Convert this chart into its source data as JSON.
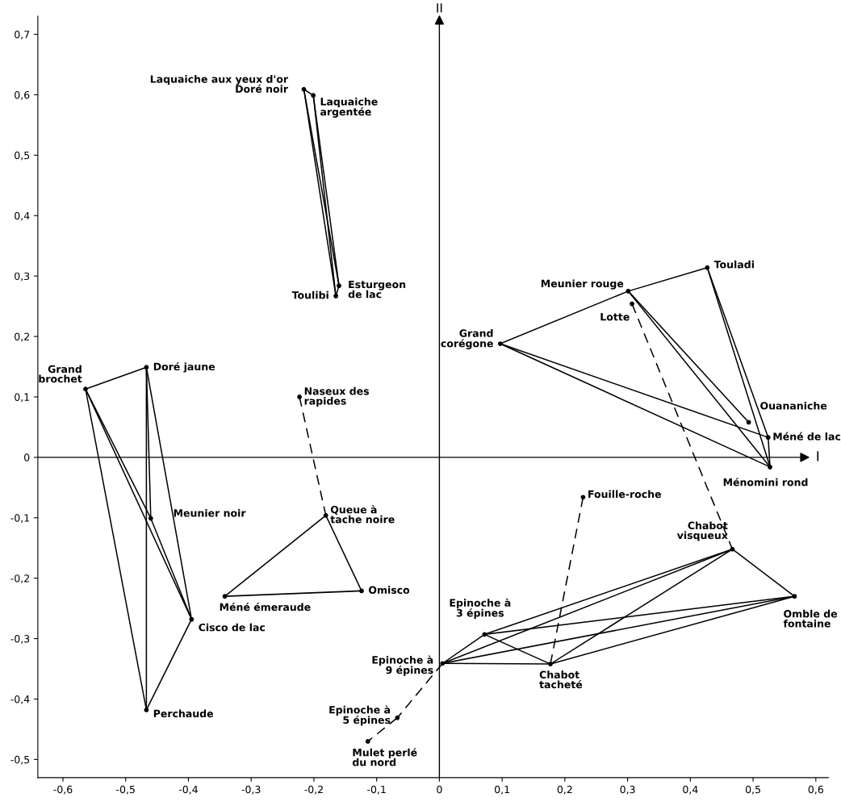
{
  "chart_data": {
    "type": "scatter",
    "xlim": [
      -0.64,
      0.62
    ],
    "ylim": [
      -0.53,
      0.73
    ],
    "xticks": [
      {
        "value": -0.6,
        "label": "-0,6"
      },
      {
        "value": -0.5,
        "label": "-0,5"
      },
      {
        "value": -0.4,
        "label": "-0,4"
      },
      {
        "value": -0.3,
        "label": "-0,3"
      },
      {
        "value": -0.2,
        "label": "-0,2"
      },
      {
        "value": -0.1,
        "label": "-0,1"
      },
      0,
      {
        "value": 0.1,
        "label": "0,1"
      },
      {
        "value": 0.2,
        "label": "0,2"
      },
      {
        "value": 0.3,
        "label": "0,3"
      },
      {
        "value": 0.4,
        "label": "0,4"
      },
      {
        "value": 0.5,
        "label": "0,5"
      },
      {
        "value": 0.6,
        "label": "0,6"
      }
    ],
    "yticks": [
      {
        "value": -0.5,
        "label": "-0,5"
      },
      {
        "value": -0.4,
        "label": "-0,4"
      },
      {
        "value": -0.3,
        "label": "-0,3"
      },
      {
        "value": -0.2,
        "label": "-0,2"
      },
      {
        "value": -0.1,
        "label": "-0,1"
      },
      0,
      {
        "value": 0.1,
        "label": "0,1"
      },
      {
        "value": 0.2,
        "label": "0,2"
      },
      {
        "value": 0.3,
        "label": "0,3"
      },
      {
        "value": 0.4,
        "label": "0,4"
      },
      {
        "value": 0.5,
        "label": "0,5"
      },
      {
        "value": 0.6,
        "label": "0,6"
      },
      {
        "value": 0.7,
        "label": "0,7"
      }
    ],
    "grid": false,
    "ref_lines": [
      {
        "axis": "y",
        "value": 0,
        "label": "I",
        "color": "#000000"
      },
      {
        "axis": "x",
        "value": 0,
        "label": "II",
        "color": "#000000"
      }
    ],
    "series": [
      {
        "type": "line",
        "color": "#000000",
        "line_style": "solid",
        "x": [
          -0.216,
          -0.201
        ],
        "values": [
          0.609,
          0.599
        ]
      },
      {
        "type": "line",
        "color": "#000000",
        "line_style": "solid",
        "x": [
          -0.216,
          -0.165
        ],
        "values": [
          0.609,
          0.267
        ]
      },
      {
        "type": "line",
        "color": "#000000",
        "line_style": "solid",
        "x": [
          -0.216,
          -0.16
        ],
        "values": [
          0.609,
          0.284
        ]
      },
      {
        "type": "line",
        "color": "#000000",
        "line_style": "solid",
        "x": [
          -0.201,
          -0.165
        ],
        "values": [
          0.599,
          0.267
        ]
      },
      {
        "type": "line",
        "color": "#000000",
        "line_style": "solid",
        "x": [
          -0.201,
          -0.16
        ],
        "values": [
          0.599,
          0.284
        ]
      },
      {
        "type": "line",
        "color": "#000000",
        "line_style": "solid",
        "x": [
          -0.165,
          -0.16
        ],
        "values": [
          0.267,
          0.284
        ]
      },
      {
        "type": "line",
        "color": "#000000",
        "line_style": "solid",
        "x": [
          -0.564,
          -0.467
        ],
        "values": [
          0.113,
          0.149
        ]
      },
      {
        "type": "line",
        "color": "#000000",
        "line_style": "solid",
        "x": [
          -0.564,
          -0.467
        ],
        "values": [
          0.113,
          -0.418
        ]
      },
      {
        "type": "line",
        "color": "#000000",
        "line_style": "solid",
        "x": [
          -0.564,
          -0.395
        ],
        "values": [
          0.113,
          -0.268
        ]
      },
      {
        "type": "line",
        "color": "#000000",
        "line_style": "solid",
        "x": [
          -0.564,
          -0.46
        ],
        "values": [
          0.113,
          -0.101
        ]
      },
      {
        "type": "line",
        "color": "#000000",
        "line_style": "solid",
        "x": [
          -0.467,
          -0.467
        ],
        "values": [
          0.149,
          -0.418
        ]
      },
      {
        "type": "line",
        "color": "#000000",
        "line_style": "solid",
        "x": [
          -0.467,
          -0.395
        ],
        "values": [
          0.149,
          -0.268
        ]
      },
      {
        "type": "line",
        "color": "#000000",
        "line_style": "solid",
        "x": [
          -0.467,
          -0.46
        ],
        "values": [
          0.149,
          -0.101
        ]
      },
      {
        "type": "line",
        "color": "#000000",
        "line_style": "solid",
        "x": [
          -0.46,
          -0.395
        ],
        "values": [
          -0.101,
          -0.268
        ]
      },
      {
        "type": "line",
        "color": "#000000",
        "line_style": "solid",
        "x": [
          -0.395,
          -0.467
        ],
        "values": [
          -0.268,
          -0.418
        ]
      },
      {
        "type": "line",
        "color": "#000000",
        "line_style": "solid",
        "x": [
          -0.342,
          -0.181
        ],
        "values": [
          -0.23,
          -0.096
        ]
      },
      {
        "type": "line",
        "color": "#000000",
        "line_style": "solid",
        "x": [
          -0.181,
          -0.124
        ],
        "values": [
          -0.096,
          -0.221
        ]
      },
      {
        "type": "line",
        "color": "#000000",
        "line_style": "solid",
        "x": [
          -0.342,
          -0.124
        ],
        "values": [
          -0.23,
          -0.221
        ]
      },
      {
        "type": "line",
        "color": "#000000",
        "line_style": "dashed",
        "x": [
          -0.223,
          -0.181
        ],
        "values": [
          0.1,
          -0.096
        ]
      },
      {
        "type": "line",
        "color": "#000000",
        "line_style": "solid",
        "x": [
          0.097,
          0.301
        ],
        "values": [
          0.188,
          0.275
        ]
      },
      {
        "type": "line",
        "color": "#000000",
        "line_style": "solid",
        "x": [
          0.301,
          0.427
        ],
        "values": [
          0.275,
          0.314
        ]
      },
      {
        "type": "line",
        "color": "#000000",
        "line_style": "solid",
        "x": [
          0.097,
          0.524
        ],
        "values": [
          0.188,
          0.033
        ]
      },
      {
        "type": "line",
        "color": "#000000",
        "line_style": "solid",
        "x": [
          0.097,
          0.527
        ],
        "values": [
          0.188,
          -0.016
        ]
      },
      {
        "type": "line",
        "color": "#000000",
        "line_style": "solid",
        "x": [
          0.301,
          0.527
        ],
        "values": [
          0.275,
          -0.016
        ]
      },
      {
        "type": "line",
        "color": "#000000",
        "line_style": "solid",
        "x": [
          0.301,
          0.493
        ],
        "values": [
          0.275,
          0.058
        ]
      },
      {
        "type": "line",
        "color": "#000000",
        "line_style": "solid",
        "x": [
          0.427,
          0.527
        ],
        "values": [
          0.314,
          -0.016
        ]
      },
      {
        "type": "line",
        "color": "#000000",
        "line_style": "solid",
        "x": [
          0.427,
          0.524
        ],
        "values": [
          0.314,
          0.033
        ]
      },
      {
        "type": "line",
        "color": "#000000",
        "line_style": "solid",
        "x": [
          0.524,
          0.527
        ],
        "values": [
          0.033,
          -0.016
        ]
      },
      {
        "type": "line",
        "color": "#000000",
        "line_style": "dashed",
        "x": [
          0.307,
          0.467
        ],
        "values": [
          0.254,
          -0.152
        ]
      },
      {
        "type": "line",
        "color": "#000000",
        "line_style": "solid",
        "x": [
          0.005,
          0.072
        ],
        "values": [
          -0.341,
          -0.293
        ]
      },
      {
        "type": "line",
        "color": "#000000",
        "line_style": "solid",
        "x": [
          0.005,
          0.177
        ],
        "values": [
          -0.341,
          -0.342
        ]
      },
      {
        "type": "line",
        "color": "#000000",
        "line_style": "solid",
        "x": [
          0.005,
          0.467
        ],
        "values": [
          -0.341,
          -0.152
        ]
      },
      {
        "type": "line",
        "color": "#000000",
        "line_style": "solid",
        "x": [
          0.005,
          0.566
        ],
        "values": [
          -0.341,
          -0.23
        ]
      },
      {
        "type": "line",
        "color": "#000000",
        "line_style": "solid",
        "x": [
          0.072,
          0.177
        ],
        "values": [
          -0.293,
          -0.342
        ]
      },
      {
        "type": "line",
        "color": "#000000",
        "line_style": "solid",
        "x": [
          0.072,
          0.467
        ],
        "values": [
          -0.293,
          -0.152
        ]
      },
      {
        "type": "line",
        "color": "#000000",
        "line_style": "solid",
        "x": [
          0.072,
          0.566
        ],
        "values": [
          -0.293,
          -0.23
        ]
      },
      {
        "type": "line",
        "color": "#000000",
        "line_style": "solid",
        "x": [
          0.177,
          0.467
        ],
        "values": [
          -0.342,
          -0.152
        ]
      },
      {
        "type": "line",
        "color": "#000000",
        "line_style": "solid",
        "x": [
          0.177,
          0.566
        ],
        "values": [
          -0.342,
          -0.23
        ]
      },
      {
        "type": "line",
        "color": "#000000",
        "line_style": "solid",
        "x": [
          0.467,
          0.566
        ],
        "values": [
          -0.152,
          -0.23
        ]
      },
      {
        "type": "line",
        "color": "#000000",
        "line_style": "dashed",
        "x": [
          0.229,
          0.177
        ],
        "values": [
          -0.066,
          -0.342
        ]
      },
      {
        "type": "line",
        "color": "#000000",
        "line_style": "dashed",
        "x": [
          0.005,
          -0.067
        ],
        "values": [
          -0.341,
          -0.431
        ]
      },
      {
        "type": "line",
        "color": "#000000",
        "line_style": "dashed",
        "x": [
          -0.067,
          -0.114
        ],
        "values": [
          -0.431,
          -0.47
        ]
      },
      {
        "color": "#000000",
        "marker": "circle",
        "x": [
          -0.216,
          -0.201,
          -0.165,
          -0.16,
          -0.564,
          -0.467,
          -0.46,
          -0.395,
          -0.467,
          -0.342,
          -0.181,
          -0.124,
          -0.223,
          0.097,
          0.301,
          0.427,
          0.307,
          0.493,
          0.524,
          0.527,
          0.229,
          0.467,
          0.566,
          0.072,
          0.177,
          0.005,
          -0.067,
          -0.114
        ],
        "values": [
          0.609,
          0.599,
          0.267,
          0.284,
          0.113,
          0.149,
          -0.101,
          -0.268,
          -0.418,
          -0.23,
          -0.096,
          -0.221,
          0.1,
          0.188,
          0.275,
          0.314,
          0.254,
          0.058,
          0.033,
          -0.016,
          -0.066,
          -0.152,
          -0.23,
          -0.293,
          -0.342,
          -0.341,
          -0.431,
          -0.47
        ]
      }
    ],
    "annotations": [
      {
        "text": "Laquaiche aux yeux d'or\nDoré noir",
        "x": -0.216,
        "y": 0.609
      },
      {
        "text": "Laquaiche\nargentée",
        "x": -0.201,
        "y": 0.599
      },
      {
        "text": "Toulibi",
        "x": -0.165,
        "y": 0.267
      },
      {
        "text": "Esturgeon\nde lac",
        "x": -0.16,
        "y": 0.284
      },
      {
        "text": "Grand\nbrochet",
        "x": -0.564,
        "y": 0.113
      },
      {
        "text": "Doré jaune",
        "x": -0.467,
        "y": 0.149
      },
      {
        "text": "Meunier noir",
        "x": -0.46,
        "y": -0.101
      },
      {
        "text": "Cisco de lac",
        "x": -0.395,
        "y": -0.268
      },
      {
        "text": "Perchaude",
        "x": -0.467,
        "y": -0.418
      },
      {
        "text": "Méné émeraude",
        "x": -0.342,
        "y": -0.23
      },
      {
        "text": "Queue à\ntache noire",
        "x": -0.181,
        "y": -0.096
      },
      {
        "text": "Omisco",
        "x": -0.124,
        "y": -0.221
      },
      {
        "text": "Naseux des\nrapides",
        "x": -0.223,
        "y": 0.1
      },
      {
        "text": "Grand\ncorégone",
        "x": 0.097,
        "y": 0.188
      },
      {
        "text": "Meunier rouge",
        "x": 0.301,
        "y": 0.275
      },
      {
        "text": "Touladi",
        "x": 0.427,
        "y": 0.314
      },
      {
        "text": "Lotte",
        "x": 0.307,
        "y": 0.254
      },
      {
        "text": "Ouananiche",
        "x": 0.493,
        "y": 0.058
      },
      {
        "text": "Méné de lac",
        "x": 0.524,
        "y": 0.033
      },
      {
        "text": "Ménomini rond",
        "x": 0.527,
        "y": -0.016
      },
      {
        "text": "Fouille-roche",
        "x": 0.229,
        "y": -0.066
      },
      {
        "text": "Chabot\nvisqueux",
        "x": 0.467,
        "y": -0.152
      },
      {
        "text": "Omble de\nfontaine",
        "x": 0.566,
        "y": -0.23
      },
      {
        "text": "Epinoche à\n3 épines",
        "x": 0.072,
        "y": -0.293
      },
      {
        "text": "Chabot\ntacheté",
        "x": 0.177,
        "y": -0.342
      },
      {
        "text": "Epinoche à\n9 épines",
        "x": 0.005,
        "y": -0.341
      },
      {
        "text": "Epinoche à\n5 épines",
        "x": -0.067,
        "y": -0.431
      },
      {
        "text": "Mulet perlé\ndu nord",
        "x": -0.114,
        "y": -0.47
      }
    ]
  }
}
